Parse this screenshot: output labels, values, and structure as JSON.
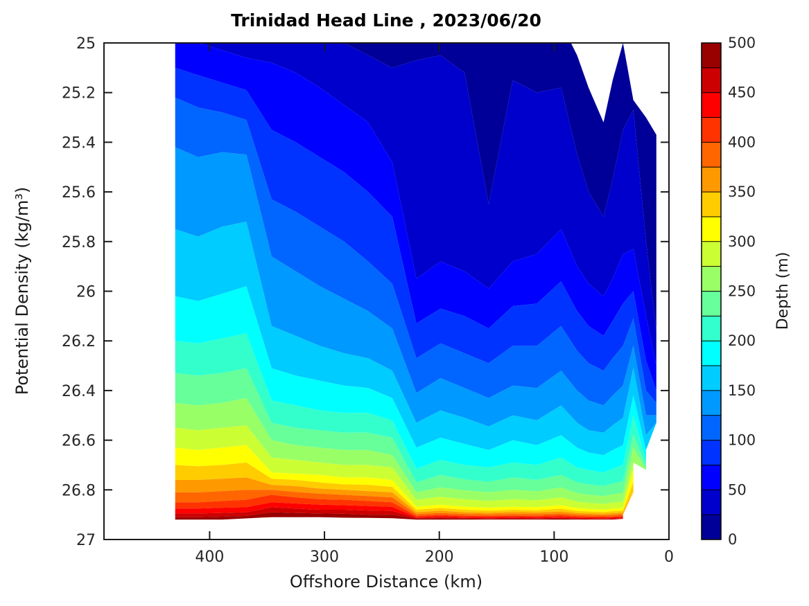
{
  "title": "Trinidad Head Line , 2023/06/20",
  "axes": {
    "x": {
      "label": "Offshore Distance (km)",
      "ticks": [
        "400",
        "300",
        "200",
        "100",
        "0"
      ],
      "tick_values": [
        400,
        300,
        200,
        100,
        0
      ],
      "range": [
        492,
        0
      ],
      "reversed": true
    },
    "y": {
      "label": "Potential Density (kg/m³)",
      "ticks": [
        "25",
        "25.2",
        "25.4",
        "25.6",
        "25.8",
        "26",
        "26.2",
        "26.4",
        "26.6",
        "26.8",
        "27"
      ],
      "tick_values": [
        25,
        25.2,
        25.4,
        25.6,
        25.8,
        26,
        26.2,
        26.4,
        26.6,
        26.8,
        27
      ],
      "range": [
        25,
        27
      ],
      "reversed": true
    }
  },
  "colorbar": {
    "label": "Depth (m)",
    "min": 0,
    "max": 500,
    "band_size": 25,
    "ticks": [
      "0",
      "50",
      "100",
      "150",
      "200",
      "250",
      "300",
      "350",
      "400",
      "450",
      "500"
    ],
    "tick_values": [
      0,
      50,
      100,
      150,
      200,
      250,
      300,
      350,
      400,
      450,
      500
    ]
  },
  "chart_data": {
    "type": "contourf-filled-section",
    "title": "Trinidad Head Line , 2023/06/20",
    "xlabel": "Offshore Distance (km)",
    "ylabel": "Potential Density (kg/m³)",
    "zlabel": "Depth (m)",
    "xlim": [
      492,
      0
    ],
    "ylim": [
      25,
      27
    ],
    "grid": false,
    "legend_position": "right-colorbar",
    "colormap": "jet (20 discrete bands, 0-500 m by 25 m)",
    "colors": [
      "#000099",
      "#0000CC",
      "#0000FF",
      "#0033FF",
      "#0066FF",
      "#0099FF",
      "#00CCFF",
      "#00FFFF",
      "#33FFCC",
      "#66FF99",
      "#99FF66",
      "#CCFF33",
      "#FFFF00",
      "#FFCC00",
      "#FF9900",
      "#FF6600",
      "#FF3300",
      "#FF0000",
      "#CC0000",
      "#990000"
    ],
    "levels_m": [
      0,
      25,
      50,
      75,
      100,
      125,
      150,
      175,
      200,
      225,
      250,
      275,
      300,
      325,
      350,
      375,
      400,
      425,
      450,
      475,
      500
    ],
    "note": "Each station lists potential density (kg/m3) at successive 25 m depth levels; shorter arrays end at the station's deepest sample. Values < 25 lie above the plotted density range.",
    "stations": [
      {
        "km": 430,
        "sigma": [
          24.55,
          24.8,
          24.97,
          25.1,
          25.22,
          25.42,
          25.75,
          26.02,
          26.2,
          26.33,
          26.45,
          26.55,
          26.63,
          26.7,
          26.76,
          26.81,
          26.85,
          26.875,
          26.895,
          26.91,
          26.92
        ]
      },
      {
        "km": 410,
        "sigma": [
          24.58,
          24.82,
          25.0,
          25.13,
          25.26,
          25.46,
          25.78,
          26.04,
          26.21,
          26.34,
          26.46,
          26.56,
          26.64,
          26.705,
          26.76,
          26.81,
          26.85,
          26.875,
          26.895,
          26.91,
          26.92
        ]
      },
      {
        "km": 389,
        "sigma": [
          24.62,
          24.85,
          25.03,
          25.16,
          25.28,
          25.44,
          25.74,
          26.01,
          26.19,
          26.33,
          26.45,
          26.55,
          26.63,
          26.7,
          26.755,
          26.805,
          26.845,
          26.872,
          26.893,
          26.908,
          26.92
        ]
      },
      {
        "km": 368,
        "sigma": [
          24.65,
          24.88,
          25.06,
          25.19,
          25.31,
          25.45,
          25.72,
          25.98,
          26.17,
          26.31,
          26.43,
          26.54,
          26.62,
          26.69,
          26.75,
          26.8,
          26.84,
          26.87,
          26.89,
          26.905,
          26.915
        ]
      },
      {
        "km": 346,
        "sigma": [
          24.7,
          24.9,
          25.08,
          25.35,
          25.63,
          25.86,
          26.14,
          26.31,
          26.44,
          26.53,
          26.6,
          26.67,
          26.73,
          26.755,
          26.78,
          26.8,
          26.82,
          26.85,
          26.87,
          26.89,
          26.91
        ]
      },
      {
        "km": 325,
        "sigma": [
          24.72,
          24.92,
          25.12,
          25.4,
          25.68,
          25.92,
          26.18,
          26.34,
          26.46,
          26.55,
          26.62,
          26.68,
          26.735,
          26.76,
          26.785,
          26.808,
          26.83,
          26.855,
          26.875,
          26.893,
          26.91
        ]
      },
      {
        "km": 304,
        "sigma": [
          24.75,
          24.95,
          25.18,
          25.46,
          25.74,
          25.98,
          26.22,
          26.36,
          26.48,
          26.56,
          26.63,
          26.69,
          26.74,
          26.77,
          26.795,
          26.815,
          26.838,
          26.86,
          26.88,
          26.895,
          26.91
        ]
      },
      {
        "km": 283,
        "sigma": [
          24.78,
          25.0,
          25.25,
          25.52,
          25.8,
          26.03,
          26.25,
          26.38,
          26.49,
          26.57,
          26.64,
          26.7,
          26.75,
          26.778,
          26.8,
          26.82,
          26.84,
          26.862,
          26.88,
          26.896,
          26.912
        ]
      },
      {
        "km": 262,
        "sigma": [
          24.8,
          25.05,
          25.32,
          25.6,
          25.88,
          26.08,
          26.27,
          26.39,
          26.49,
          26.57,
          26.64,
          26.7,
          26.75,
          26.78,
          26.805,
          26.825,
          26.845,
          26.865,
          26.883,
          26.9,
          26.913
        ]
      },
      {
        "km": 241,
        "sigma": [
          24.83,
          25.1,
          25.48,
          25.7,
          25.97,
          26.15,
          26.32,
          26.43,
          26.52,
          26.59,
          26.66,
          26.71,
          26.76,
          26.788,
          26.81,
          26.83,
          26.85,
          26.868,
          26.885,
          26.9,
          26.914
        ]
      },
      {
        "km": 220,
        "sigma": [
          24.85,
          25.07,
          25.95,
          26.13,
          26.27,
          26.41,
          26.53,
          26.63,
          26.715,
          26.77,
          26.81,
          26.84,
          26.868,
          26.88,
          26.89,
          26.898,
          26.905,
          26.91,
          26.913,
          26.916,
          26.92
        ]
      },
      {
        "km": 199,
        "sigma": [
          24.87,
          25.05,
          25.88,
          26.07,
          26.21,
          26.35,
          26.48,
          26.59,
          26.68,
          26.74,
          26.79,
          26.828,
          26.86,
          26.873,
          26.884,
          26.893,
          26.9,
          26.906,
          26.911,
          26.915,
          26.92
        ]
      },
      {
        "km": 178,
        "sigma": [
          24.9,
          25.12,
          25.92,
          26.1,
          26.25,
          26.39,
          26.51,
          26.615,
          26.7,
          26.758,
          26.802,
          26.838,
          26.868,
          26.88,
          26.89,
          26.897,
          26.904,
          26.909,
          26.913,
          26.916,
          26.92
        ]
      },
      {
        "km": 157,
        "sigma": [
          24.95,
          25.65,
          25.99,
          26.15,
          26.29,
          26.43,
          26.545,
          26.64,
          26.71,
          26.768,
          26.81,
          26.845,
          26.872,
          26.883,
          26.892,
          26.899,
          26.905,
          26.91,
          26.914,
          26.917,
          26.92
        ]
      },
      {
        "km": 136,
        "sigma": [
          24.88,
          25.15,
          25.88,
          26.06,
          26.22,
          26.38,
          26.5,
          26.6,
          26.69,
          26.75,
          26.8,
          26.838,
          26.868,
          26.88,
          26.889,
          26.897,
          26.904,
          26.909,
          26.913,
          26.917,
          26.92
        ]
      },
      {
        "km": 115,
        "sigma": [
          24.9,
          25.2,
          25.85,
          26.05,
          26.22,
          26.39,
          26.52,
          26.62,
          26.7,
          26.76,
          26.806,
          26.842,
          26.87,
          26.882,
          26.891,
          26.898,
          26.905,
          26.91,
          26.914,
          26.917,
          26.92
        ]
      },
      {
        "km": 94,
        "sigma": [
          24.92,
          25.18,
          25.75,
          25.96,
          26.14,
          26.32,
          26.46,
          26.58,
          26.67,
          26.74,
          26.79,
          26.83,
          26.862,
          26.876,
          26.887,
          26.895,
          26.902,
          26.908,
          26.913,
          26.916,
          26.92
        ]
      },
      {
        "km": 80,
        "sigma": [
          25.05,
          25.45,
          25.9,
          26.08,
          26.24,
          26.4,
          26.53,
          26.63,
          26.71,
          26.77,
          26.813,
          26.848,
          26.874,
          26.885,
          26.893,
          26.9,
          26.906,
          26.911,
          26.915,
          26.917,
          26.92
        ]
      },
      {
        "km": 70,
        "sigma": [
          25.18,
          25.6,
          25.97,
          26.14,
          26.29,
          26.44,
          26.56,
          26.65,
          26.72,
          26.778,
          26.82,
          26.853,
          26.877,
          26.887,
          26.895,
          26.901,
          26.907,
          26.912,
          26.915,
          26.918,
          26.92
        ]
      },
      {
        "km": 57,
        "sigma": [
          25.32,
          25.7,
          26.02,
          26.18,
          26.32,
          26.46,
          26.57,
          26.66,
          26.73,
          26.785,
          26.825,
          26.857,
          26.88,
          26.889,
          26.896,
          26.902,
          26.908,
          26.912,
          26.916,
          26.918,
          26.92
        ]
      },
      {
        "km": 49,
        "sigma": [
          25.15,
          25.55,
          25.95,
          26.12,
          26.27,
          26.42,
          26.54,
          26.64,
          26.715,
          26.775,
          26.818,
          26.852,
          26.876,
          26.886,
          26.894,
          26.901,
          26.907,
          26.911,
          26.915,
          26.918,
          26.92
        ]
      },
      {
        "km": 40,
        "sigma": [
          25.0,
          25.35,
          25.85,
          26.05,
          26.22,
          26.38,
          26.51,
          26.62,
          26.7,
          26.765,
          26.812,
          26.848,
          26.873,
          26.884,
          26.892,
          26.899,
          26.905,
          26.91,
          26.914,
          26.917
        ]
      },
      {
        "km": 31,
        "sigma": [
          25.23,
          25.27,
          25.83,
          26.0,
          26.11,
          26.22,
          26.31,
          26.42,
          26.5,
          26.58,
          26.63,
          26.69,
          26.72,
          26.77,
          26.81
        ]
      },
      {
        "km": 20,
        "sigma": [
          25.3,
          25.8,
          26.1,
          26.28,
          26.4,
          26.5,
          26.58,
          26.64,
          26.685,
          26.705,
          26.72
        ]
      },
      {
        "km": 11,
        "sigma": [
          25.37,
          26.16,
          26.3,
          26.4,
          26.45,
          26.5,
          26.53
        ]
      }
    ]
  }
}
